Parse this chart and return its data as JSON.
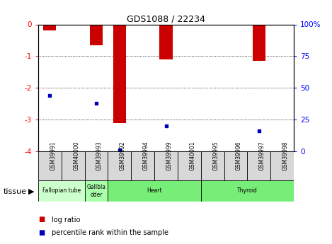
{
  "title": "GDS1088 / 22234",
  "samples": [
    "GSM39991",
    "GSM40000",
    "GSM39993",
    "GSM39992",
    "GSM39994",
    "GSM39999",
    "GSM40001",
    "GSM39995",
    "GSM39996",
    "GSM39997",
    "GSM39998"
  ],
  "log_ratios": [
    -0.2,
    0,
    -0.65,
    -3.1,
    0,
    -1.1,
    0,
    0,
    0,
    -1.15,
    0
  ],
  "percentile_ranks": [
    44,
    0,
    38,
    1,
    0,
    20,
    0,
    0,
    0,
    16,
    0
  ],
  "bar_color": "#cc0000",
  "dot_color": "#0000bb",
  "ylim_min": -4,
  "ylim_max": 0,
  "y2lim_min": 0,
  "y2lim_max": 100,
  "yticks": [
    -4,
    -3,
    -2,
    -1,
    0
  ],
  "y2ticks": [
    0,
    25,
    50,
    75,
    100
  ],
  "tissue_groups": [
    {
      "label": "Fallopian tube",
      "start": 0,
      "end": 2,
      "color": "#ccffcc"
    },
    {
      "label": "Gallbla\ndder",
      "start": 2,
      "end": 3,
      "color": "#aaffaa"
    },
    {
      "label": "Heart",
      "start": 3,
      "end": 7,
      "color": "#77ee77"
    },
    {
      "label": "Thyroid",
      "start": 7,
      "end": 11,
      "color": "#77ee77"
    }
  ],
  "legend_log_ratio": "log ratio",
  "legend_percentile": "percentile rank within the sample",
  "bar_width": 0.55,
  "bg_color": "#f0f0f0"
}
